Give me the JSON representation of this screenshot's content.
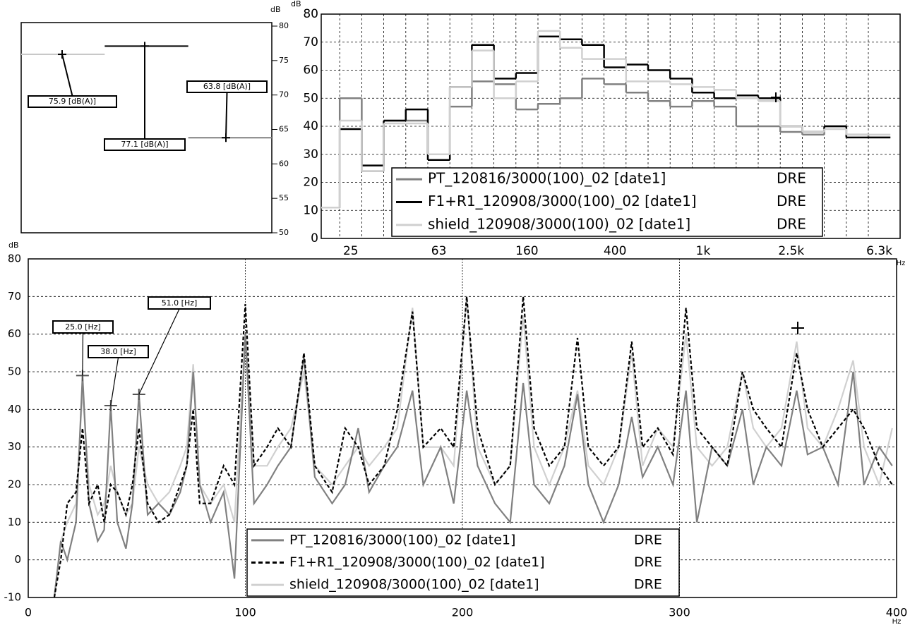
{
  "chart_data": [
    {
      "type": "level",
      "y_label": "dB",
      "ylim": [
        50,
        80
      ],
      "yticks": [
        50,
        55,
        60,
        65,
        70,
        75,
        80
      ],
      "values": [
        75.9,
        77.1,
        63.8
      ],
      "value_labels": [
        "75.9 [dB(A)]",
        "77.1 [dB(A)]",
        "63.8 [dB(A)]"
      ],
      "colors": [
        "#c8c8c8",
        "#000000",
        "#808080"
      ]
    },
    {
      "type": "step",
      "y_label": "dB",
      "x_label": "Hz",
      "ylim": [
        0,
        80
      ],
      "yticks": [
        0,
        10,
        20,
        30,
        40,
        50,
        60,
        70,
        80
      ],
      "grid": true,
      "categories": [
        null,
        "25",
        null,
        null,
        null,
        "63",
        null,
        null,
        null,
        "160",
        null,
        null,
        null,
        "400",
        null,
        null,
        null,
        "1k",
        null,
        null,
        null,
        "2.5k",
        null,
        null,
        null,
        "6.3k"
      ],
      "series": [
        {
          "name": "PT_120816/3000(100)_02 [date1]",
          "suffix": "DRE",
          "color": "#808080",
          "values": [
            11,
            50,
            24,
            42,
            42,
            30,
            47,
            56,
            55,
            46,
            48,
            50,
            57,
            55,
            52,
            49,
            47,
            49,
            47,
            40,
            40,
            38,
            37,
            40,
            37,
            36
          ]
        },
        {
          "name": "F1+R1_120908/3000(100)_02 [date1]",
          "suffix": "DRE",
          "color": "#000000",
          "values": [
            11,
            39,
            26,
            42,
            46,
            28,
            54,
            69,
            57,
            59,
            72,
            71,
            69,
            61,
            62,
            60,
            57,
            52,
            50,
            51,
            50,
            40,
            38,
            40,
            36,
            36
          ]
        },
        {
          "name": "shield_120908/3000(100)_02 [date1]",
          "suffix": "DRE",
          "color": "#d0d0d0",
          "values": [
            11,
            42,
            24,
            41,
            41,
            30,
            54,
            67,
            50,
            56,
            74,
            68,
            64,
            64,
            56,
            56,
            55,
            54,
            53,
            50,
            49,
            40,
            38,
            39,
            37,
            37
          ]
        }
      ]
    },
    {
      "type": "line",
      "y_label": "dB",
      "x_label": "Hz",
      "xlim": [
        0,
        400
      ],
      "xticks": [
        0,
        100,
        200,
        300,
        400
      ],
      "ylim": [
        -10,
        80
      ],
      "yticks": [
        -10,
        0,
        10,
        20,
        30,
        40,
        50,
        60,
        70,
        80
      ],
      "grid": true,
      "x": [
        12,
        15,
        18,
        22,
        25,
        28,
        32,
        35,
        38,
        41,
        45,
        48,
        51,
        55,
        60,
        65,
        70,
        73,
        76,
        79,
        84,
        90,
        95,
        100,
        104,
        110,
        115,
        121,
        127,
        132,
        140,
        146,
        152,
        157,
        164,
        170,
        177,
        182,
        190,
        196,
        202,
        207,
        215,
        222,
        228,
        233,
        240,
        247,
        253,
        258,
        265,
        272,
        278,
        283,
        290,
        297,
        303,
        308,
        315,
        322,
        329,
        334,
        340,
        347,
        354,
        359,
        366,
        373,
        380,
        385,
        392,
        398
      ],
      "series": [
        {
          "name": "PT_120816/3000(100)_02 [date1]",
          "suffix": "DRE",
          "color": "#808080",
          "linestyle": "solid",
          "values": [
            -10,
            5,
            0,
            10,
            49,
            15,
            5,
            8,
            41,
            10,
            3,
            15,
            44,
            12,
            15,
            12,
            18,
            25,
            50,
            20,
            10,
            18,
            -5,
            60,
            15,
            20,
            25,
            30,
            54,
            22,
            15,
            20,
            35,
            18,
            25,
            30,
            45,
            20,
            30,
            15,
            45,
            25,
            15,
            10,
            47,
            20,
            15,
            25,
            44,
            20,
            10,
            20,
            38,
            22,
            30,
            20,
            45,
            10,
            30,
            25,
            40,
            20,
            30,
            25,
            45,
            28,
            30,
            20,
            50,
            20,
            30,
            25
          ]
        },
        {
          "name": "F1+R1_120908/3000(100)_02 [date1]",
          "suffix": "DRE",
          "color": "#000000",
          "linestyle": "dashed",
          "values": [
            -10,
            0,
            15,
            18,
            35,
            15,
            20,
            10,
            20,
            18,
            12,
            20,
            35,
            15,
            10,
            12,
            20,
            25,
            40,
            15,
            15,
            25,
            20,
            68,
            25,
            30,
            35,
            30,
            55,
            25,
            18,
            35,
            30,
            20,
            25,
            40,
            66,
            30,
            35,
            30,
            70,
            35,
            20,
            25,
            70,
            35,
            25,
            30,
            59,
            30,
            25,
            30,
            58,
            30,
            35,
            28,
            67,
            35,
            30,
            25,
            50,
            40,
            35,
            30,
            55,
            40,
            30,
            35,
            40,
            35,
            25,
            20
          ]
        },
        {
          "name": "shield_120908/3000(100)_02 [date1]",
          "suffix": "DRE",
          "color": "#d0d0d0",
          "linestyle": "solid",
          "values": [
            -10,
            5,
            10,
            15,
            45,
            20,
            12,
            15,
            25,
            18,
            12,
            15,
            30,
            20,
            15,
            18,
            25,
            30,
            52,
            20,
            15,
            20,
            10,
            60,
            25,
            25,
            30,
            35,
            50,
            25,
            20,
            25,
            30,
            25,
            30,
            35,
            67,
            30,
            30,
            25,
            70,
            30,
            20,
            25,
            65,
            30,
            20,
            30,
            45,
            25,
            20,
            30,
            55,
            25,
            35,
            30,
            60,
            30,
            25,
            30,
            50,
            35,
            30,
            35,
            58,
            35,
            30,
            40,
            53,
            30,
            20,
            35
          ]
        }
      ],
      "annotations": [
        {
          "label": "25.0 [Hz]",
          "x": 25,
          "y": 49
        },
        {
          "label": "38.0 [Hz]",
          "x": 38,
          "y": 41
        },
        {
          "label": "51.0 [Hz]",
          "x": 51,
          "y": 44
        }
      ]
    }
  ]
}
